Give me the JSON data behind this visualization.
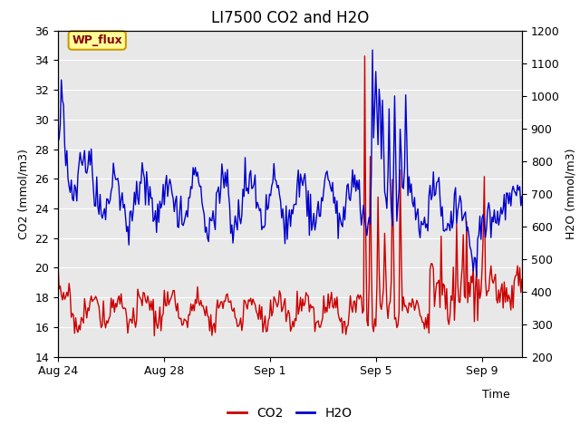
{
  "title": "LI7500 CO2 and H2O",
  "xlabel": "Time",
  "ylabel_left": "CO2 (mmol/m3)",
  "ylabel_right": "H2O (mmol/m3)",
  "ylim_left": [
    14,
    36
  ],
  "ylim_right": [
    200,
    1200
  ],
  "yticks_left": [
    14,
    16,
    18,
    20,
    22,
    24,
    26,
    28,
    30,
    32,
    34,
    36
  ],
  "yticks_right": [
    200,
    300,
    400,
    500,
    600,
    700,
    800,
    900,
    1000,
    1100,
    1200
  ],
  "xtick_positions": [
    0,
    4,
    8,
    12,
    16
  ],
  "xtick_labels": [
    "Aug 24",
    "Aug 28",
    "Sep 1",
    "Sep 5",
    "Sep 9"
  ],
  "xlim": [
    0,
    17.5
  ],
  "co2_color": "#cc0000",
  "h2o_color": "#0000cc",
  "plot_bg_color": "#e8e8e8",
  "grid_color": "#ffffff",
  "legend_label_co2": "CO2",
  "legend_label_h2o": "H2O",
  "annotation_text": "WP_flux",
  "annotation_box_color": "#ffff99",
  "annotation_border_color": "#cc9900",
  "title_fontsize": 12,
  "axis_label_fontsize": 9,
  "tick_fontsize": 9,
  "legend_fontsize": 10,
  "linewidth": 1.0
}
